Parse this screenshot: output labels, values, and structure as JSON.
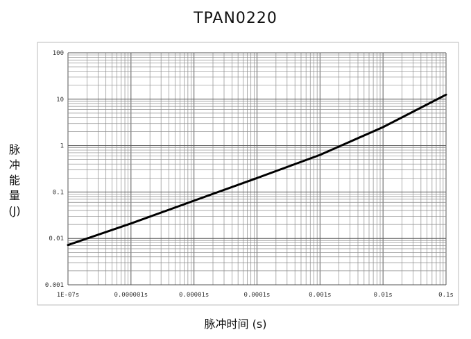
{
  "chart_data": {
    "type": "line",
    "title": "TPAN0220",
    "xlabel": "脉冲时间 (s)",
    "ylabel": "脉冲能量 (J)",
    "x_scale": "log",
    "y_scale": "log",
    "xlim": [
      1e-07,
      0.1
    ],
    "ylim": [
      0.001,
      100
    ],
    "grid": true,
    "x_ticks": [
      1e-07,
      1e-06,
      1e-05,
      0.0001,
      0.001,
      0.01,
      0.1
    ],
    "x_tick_labels": [
      "1E-07s",
      "0.000001s",
      "0.00001s",
      "0.0001s",
      "0.001s",
      "0.01s",
      "0.1s"
    ],
    "y_ticks": [
      0.001,
      0.01,
      0.1,
      1,
      10,
      100
    ],
    "y_tick_labels": [
      "0.001",
      "0.01",
      "0.1",
      "1",
      "10",
      "100"
    ],
    "series": [
      {
        "x": [
          1e-07,
          1e-06,
          1e-05,
          0.0001,
          0.001,
          0.01,
          0.1
        ],
        "y": [
          0.0072,
          0.021,
          0.065,
          0.2,
          0.63,
          2.5,
          12.5
        ]
      }
    ],
    "line_color": "#000000"
  }
}
